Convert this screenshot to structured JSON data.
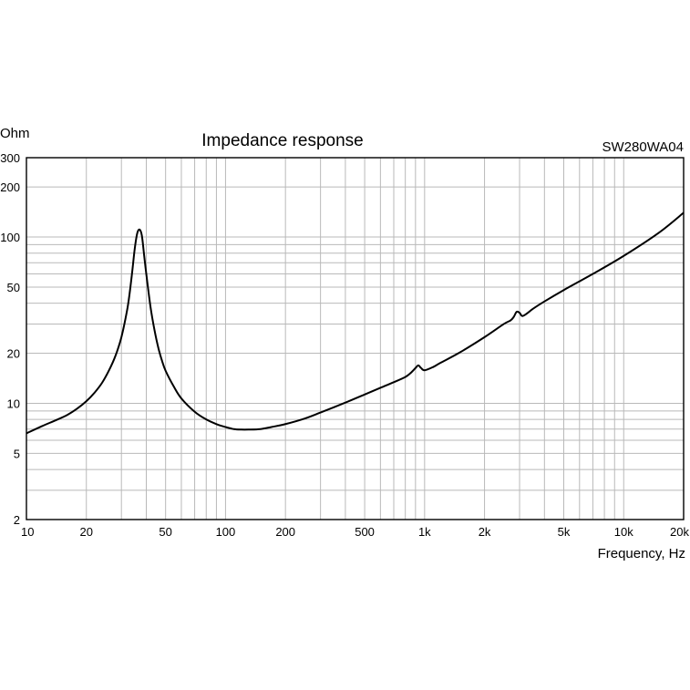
{
  "chart_data": {
    "type": "line",
    "title": "Impedance response",
    "model": "SW280WA04",
    "xlabel": "Frequency, Hz",
    "ylabel": "Ohm",
    "x_scale": "log",
    "y_scale": "log",
    "xlim": [
      10,
      20000
    ],
    "ylim": [
      2,
      300
    ],
    "grid": true,
    "x_ticks": [
      {
        "value": 10,
        "label": "10"
      },
      {
        "value": 20,
        "label": "20"
      },
      {
        "value": 50,
        "label": "50"
      },
      {
        "value": 100,
        "label": "100"
      },
      {
        "value": 200,
        "label": "200"
      },
      {
        "value": 500,
        "label": "500"
      },
      {
        "value": 1000,
        "label": "1k"
      },
      {
        "value": 2000,
        "label": "2k"
      },
      {
        "value": 5000,
        "label": "5k"
      },
      {
        "value": 10000,
        "label": "10k"
      },
      {
        "value": 20000,
        "label": "20k"
      }
    ],
    "y_ticks": [
      {
        "value": 2,
        "label": "2"
      },
      {
        "value": 5,
        "label": "5"
      },
      {
        "value": 10,
        "label": "10"
      },
      {
        "value": 20,
        "label": "20"
      },
      {
        "value": 50,
        "label": "50"
      },
      {
        "value": 100,
        "label": "100"
      },
      {
        "value": 200,
        "label": "200"
      },
      {
        "value": 300,
        "label": "300"
      }
    ],
    "series": [
      {
        "color": "#000000",
        "x": [
          10,
          12,
          14,
          16,
          18,
          20,
          22,
          24,
          26,
          28,
          30,
          32,
          33,
          34,
          35,
          36,
          37,
          38,
          39,
          40,
          42,
          44,
          46,
          48,
          50,
          55,
          60,
          70,
          80,
          90,
          100,
          110,
          120,
          130,
          150,
          170,
          200,
          250,
          300,
          400,
          500,
          600,
          700,
          800,
          850,
          900,
          930,
          960,
          1000,
          1100,
          1200,
          1500,
          2000,
          2500,
          2700,
          2800,
          2900,
          3000,
          3100,
          3300,
          3500,
          4000,
          5000,
          7000,
          10000,
          15000,
          20000
        ],
        "y": [
          6.6,
          7.3,
          7.9,
          8.5,
          9.3,
          10.3,
          11.6,
          13.3,
          15.8,
          19.3,
          25,
          36,
          46,
          62,
          85,
          105,
          111,
          102,
          78,
          60,
          38,
          27.5,
          21.5,
          18,
          15.7,
          12.6,
          10.7,
          8.9,
          8.0,
          7.5,
          7.2,
          7.0,
          6.95,
          6.95,
          7.0,
          7.2,
          7.5,
          8.1,
          8.8,
          10.1,
          11.3,
          12.4,
          13.4,
          14.4,
          15.2,
          16.3,
          16.9,
          16.3,
          15.8,
          16.5,
          17.5,
          20.2,
          25,
          30,
          31.5,
          33,
          35.5,
          35,
          33.5,
          35,
          37,
          41,
          48,
          60,
          77,
          106,
          140
        ]
      }
    ]
  }
}
